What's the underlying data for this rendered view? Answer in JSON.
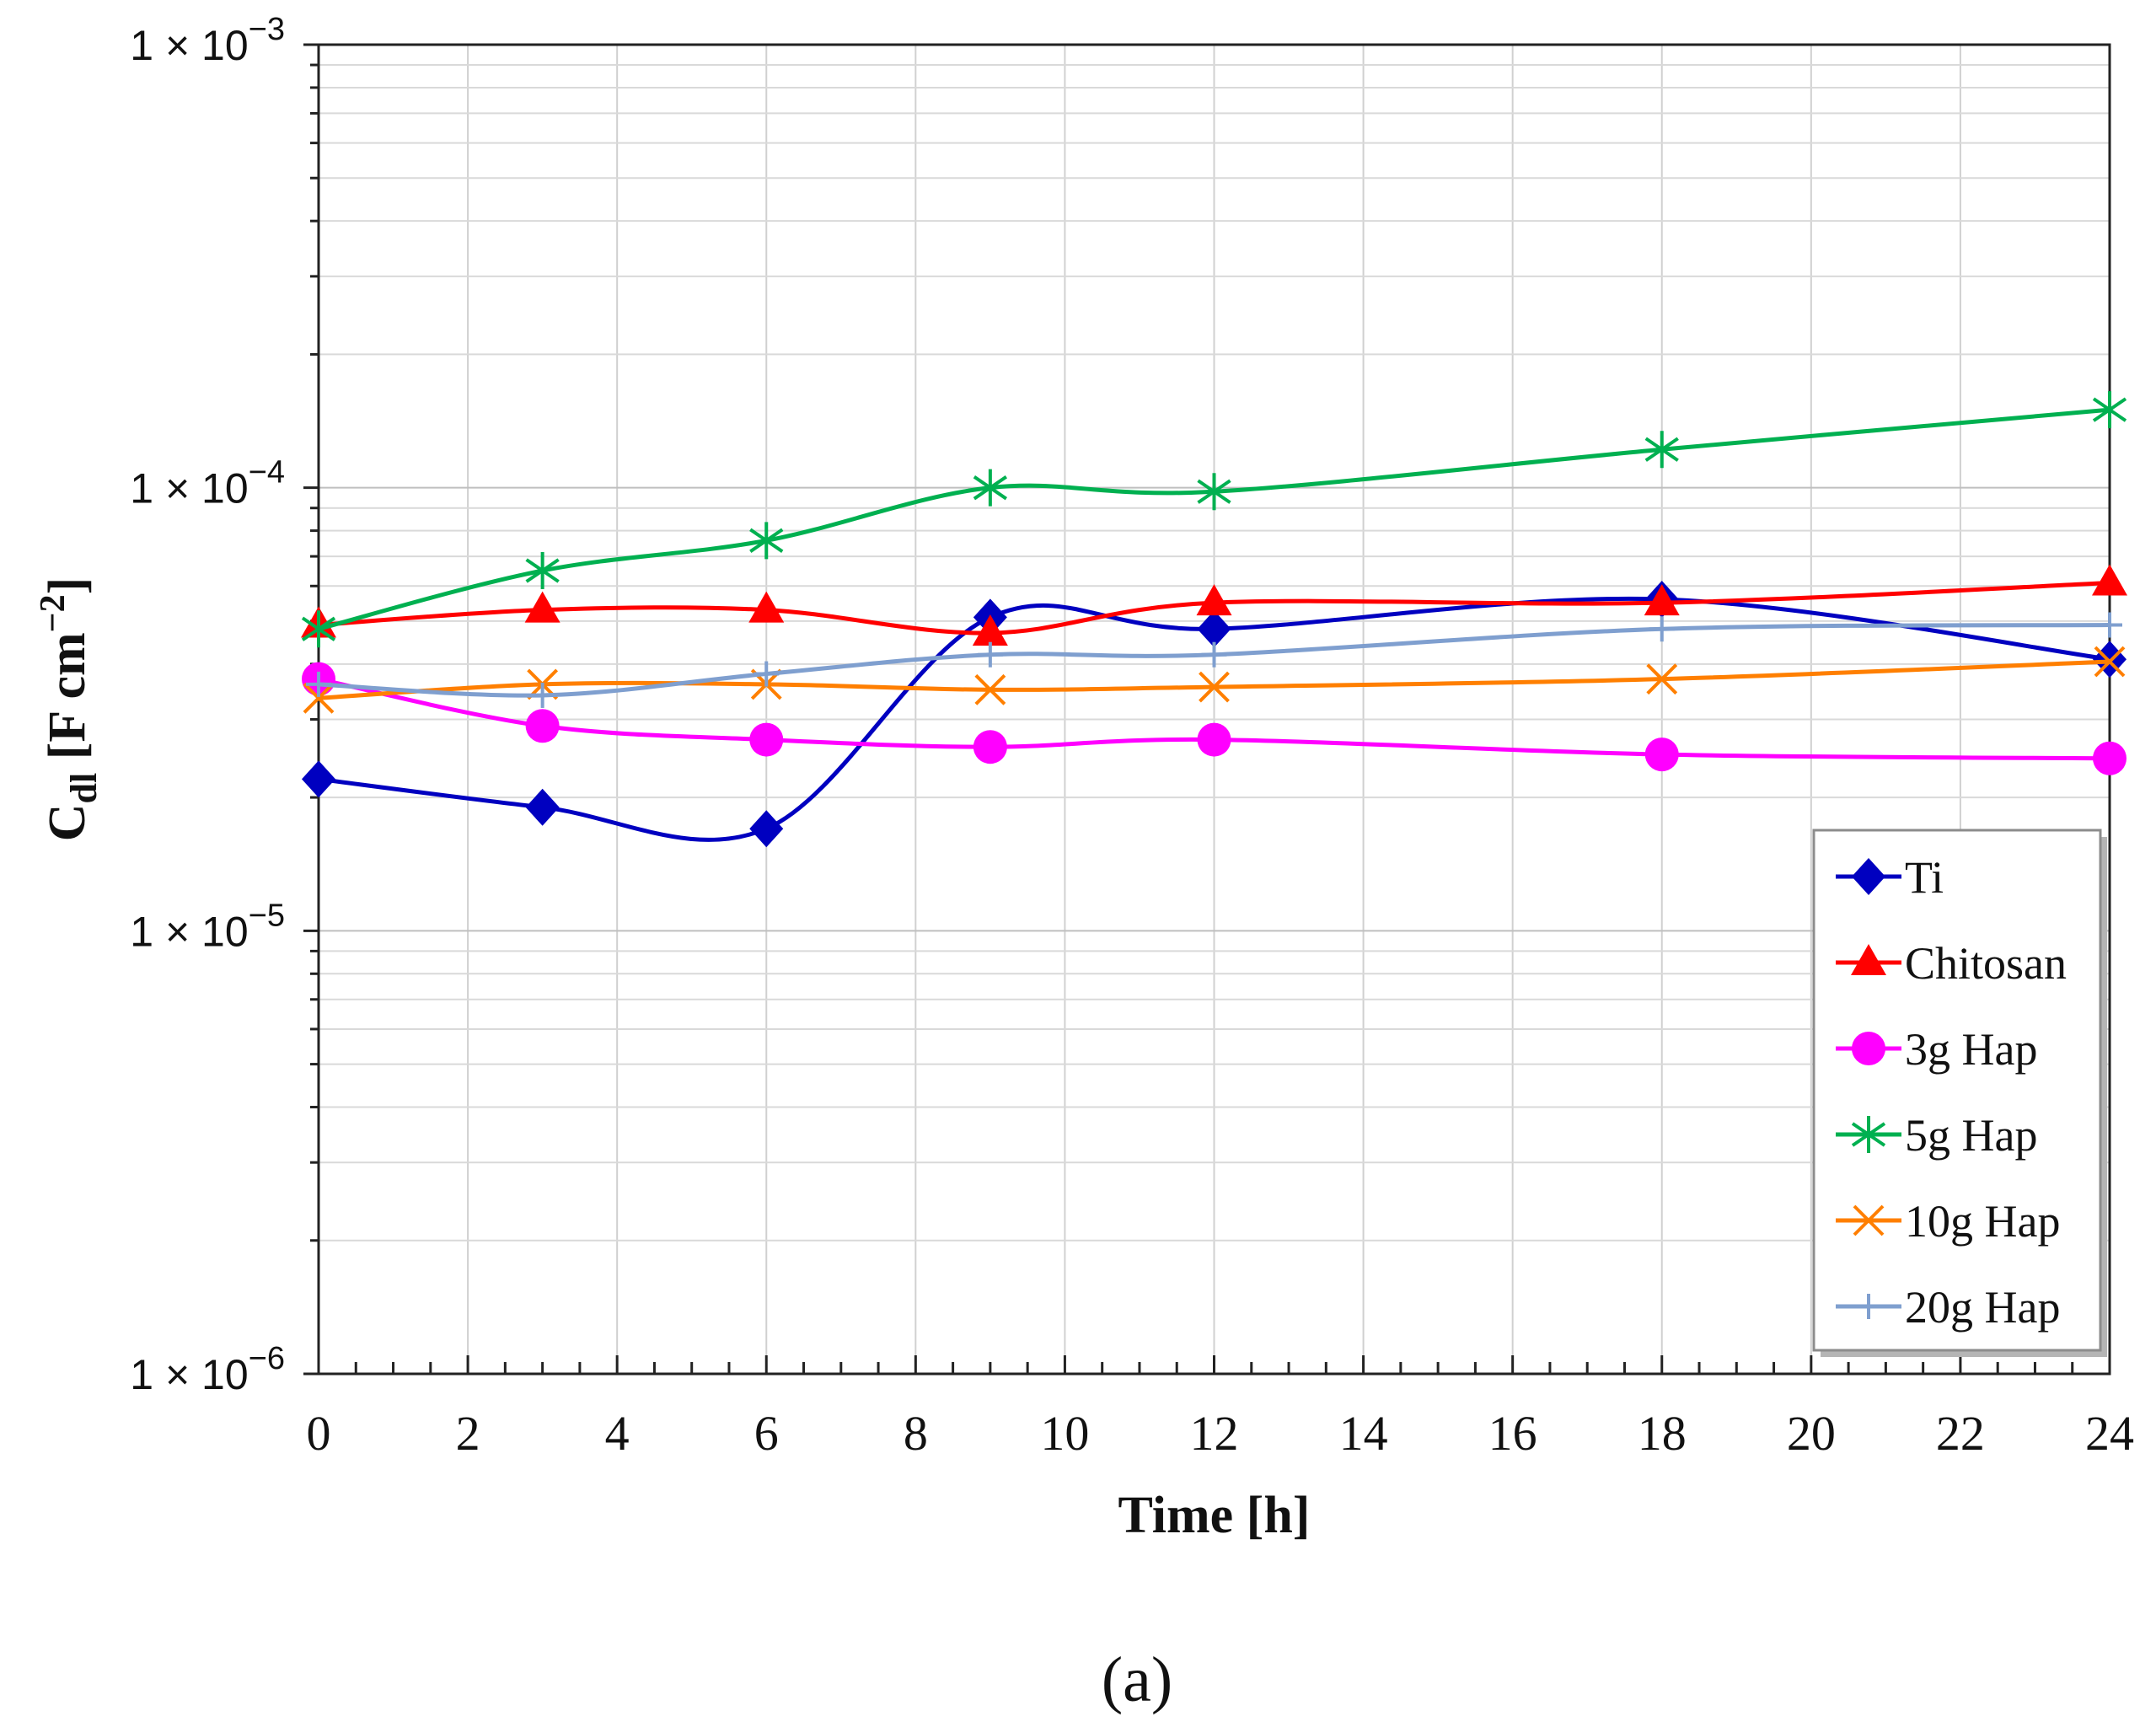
{
  "chart_data": {
    "type": "line",
    "title": "",
    "xlabel": "Time [h]",
    "ylabel_main": "C",
    "ylabel_sub": "dl",
    "ylabel_units_open": " [F cm",
    "ylabel_units_sup": "−2",
    "ylabel_units_close": "]",
    "yscale": "log",
    "xlim": [
      0,
      24
    ],
    "ylim": [
      1e-06,
      0.001
    ],
    "x_ticks": [
      "0",
      "2",
      "4",
      "6",
      "8",
      "10",
      "12",
      "14",
      "16",
      "18",
      "20",
      "22",
      "24"
    ],
    "y_ticks": [
      {
        "value": 0.001,
        "base": "1 × 10",
        "exp": "−3"
      },
      {
        "value": 0.0001,
        "base": "1 × 10",
        "exp": "−4"
      },
      {
        "value": 1e-05,
        "base": "1 × 10",
        "exp": "−5"
      },
      {
        "value": 1e-06,
        "base": "1 × 10",
        "exp": "−6"
      }
    ],
    "grid": true,
    "legend_position": "bottom-right",
    "x": [
      0,
      3,
      6,
      9,
      12,
      18,
      24
    ],
    "series": [
      {
        "name": "Ti",
        "color": "#0000C0",
        "marker": "diamond",
        "values": [
          2.2e-05,
          1.9e-05,
          1.7e-05,
          5.1e-05,
          4.8e-05,
          5.6e-05,
          4.1e-05
        ]
      },
      {
        "name": "Chitosan",
        "color": "#FF0000",
        "marker": "triangle",
        "values": [
          4.9e-05,
          5.3e-05,
          5.3e-05,
          4.7e-05,
          5.5e-05,
          5.5e-05,
          6.1e-05
        ]
      },
      {
        "name": "3g Hap",
        "color": "#FF00FF",
        "marker": "circle",
        "values": [
          3.7e-05,
          2.9e-05,
          2.7e-05,
          2.6e-05,
          2.7e-05,
          2.5e-05,
          2.45e-05
        ]
      },
      {
        "name": "5g Hap",
        "color": "#00B050",
        "marker": "asterisk",
        "values": [
          4.8e-05,
          6.5e-05,
          7.6e-05,
          0.0001,
          9.8e-05,
          0.000122,
          0.00015
        ]
      },
      {
        "name": "10g Hap",
        "color": "#FF7F00",
        "marker": "x",
        "values": [
          3.35e-05,
          3.6e-05,
          3.6e-05,
          3.5e-05,
          3.55e-05,
          3.7e-05,
          4.05e-05
        ]
      },
      {
        "name": "20g Hap",
        "color": "#7F9FCF",
        "marker": "plus",
        "values": [
          3.6e-05,
          3.4e-05,
          3.8e-05,
          4.2e-05,
          4.2e-05,
          4.8e-05,
          4.9e-05
        ]
      }
    ]
  },
  "caption": "(a)"
}
